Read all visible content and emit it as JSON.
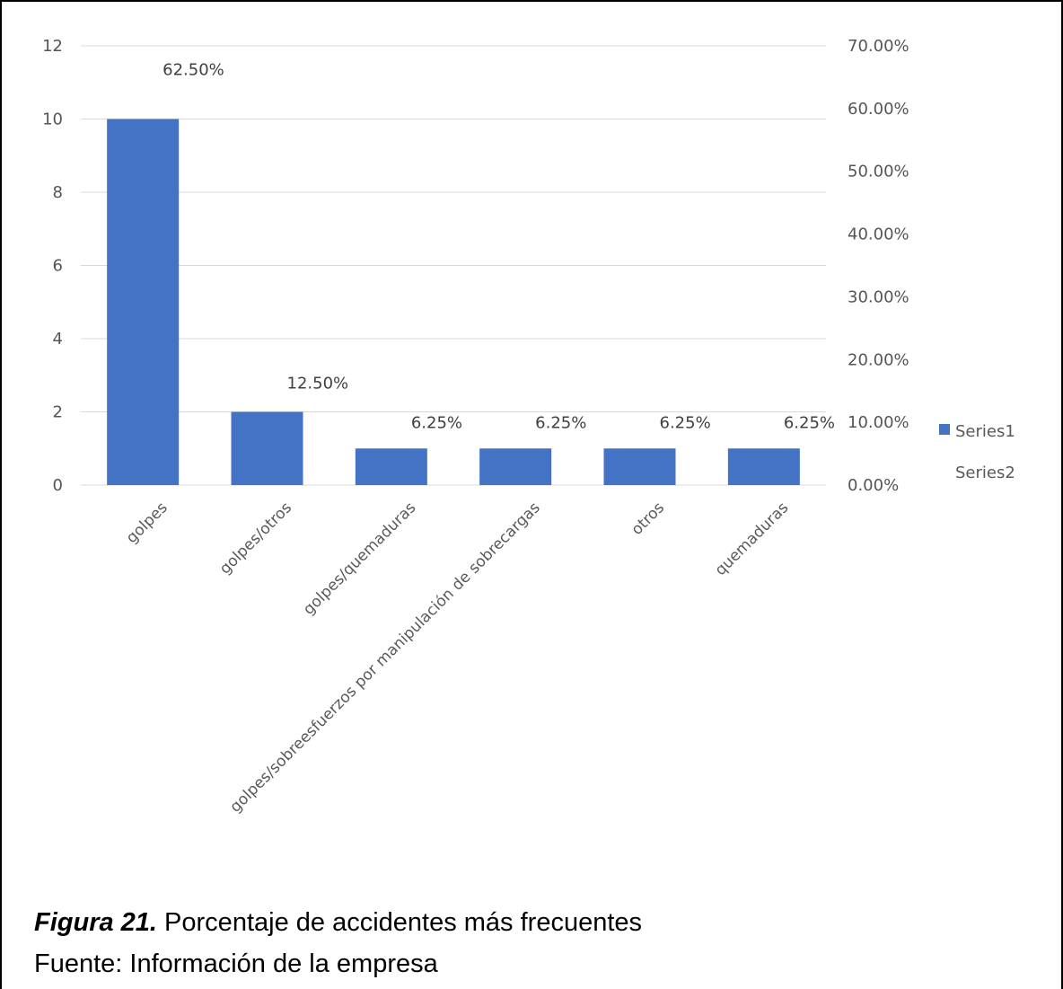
{
  "chart_data": {
    "type": "bar",
    "categories": [
      "golpes",
      "golpes/otros",
      "golpes/quemaduras",
      "golpes/sobreesfuerzos por manipulación de sobrecargas",
      "otros",
      "quemaduras"
    ],
    "series": [
      {
        "name": "Series1",
        "values": [
          10,
          2,
          1,
          1,
          1,
          1
        ],
        "color": "#4472C4",
        "axis": "primary"
      },
      {
        "name": "Series2",
        "values": [
          0.625,
          0.125,
          0.0625,
          0.0625,
          0.0625,
          0.0625
        ],
        "axis": "secondary",
        "labels": [
          "62.50%",
          "12.50%",
          "6.25%",
          "6.25%",
          "6.25%",
          "6.25%"
        ]
      }
    ],
    "y_ticks": [
      "0",
      "2",
      "4",
      "6",
      "8",
      "10",
      "12"
    ],
    "y2_ticks": [
      "0.00%",
      "10.00%",
      "20.00%",
      "30.00%",
      "40.00%",
      "50.00%",
      "60.00%",
      "70.00%"
    ],
    "ylim": [
      0,
      12
    ],
    "y2lim": [
      0,
      0.7
    ],
    "grid": true,
    "legend": "right"
  },
  "caption": {
    "figure_label": "Figura 21.",
    "text": " Porcentaje de accidentes más frecuentes",
    "source": "Fuente: Información de la empresa"
  }
}
